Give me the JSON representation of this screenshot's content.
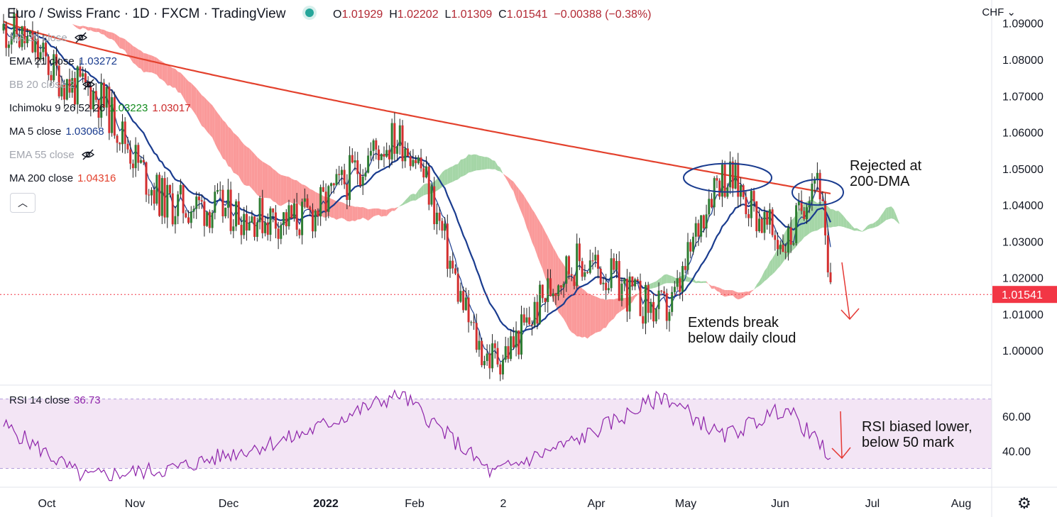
{
  "header": {
    "symbol": "Euro / Swiss Franc",
    "interval": "1D",
    "source": "FXCM",
    "platform": "TradingView",
    "open_label": "O",
    "open": "1.01929",
    "high_label": "H",
    "high": "1.02202",
    "low_label": "L",
    "low": "1.01309",
    "close_label": "C",
    "close": "1.01541",
    "change": "−0.00388 (−0.38%)",
    "currency": "CHF"
  },
  "indicators": [
    {
      "label": "MA 20 close",
      "values": [],
      "hidden": true
    },
    {
      "label": "EMA 21 close",
      "values": [
        "1.03272"
      ],
      "colors": [
        "#1a3c8f"
      ],
      "hidden": false
    },
    {
      "label": "BB 20 close 2",
      "values": [],
      "hidden": true
    },
    {
      "label": "Ichimoku 9 26 52 26",
      "values": [
        "1.03223",
        "1.03017"
      ],
      "colors": [
        "#138c1e",
        "#cc2b2b"
      ],
      "hidden": false
    },
    {
      "label": "MA 5 close",
      "values": [
        "1.03068"
      ],
      "colors": [
        "#1a3c8f"
      ],
      "hidden": false
    },
    {
      "label": "EMA 55 close",
      "values": [],
      "hidden": true
    },
    {
      "label": "MA 200 close",
      "values": [
        "1.04316"
      ],
      "colors": [
        "#e3412d"
      ],
      "hidden": false
    }
  ],
  "rsi_legend": {
    "label": "RSI 14 close",
    "value": "36.73"
  },
  "annotations": [
    {
      "text": "Rejected at\n200-DMA"
    },
    {
      "text": "Extends break\nbelow daily cloud"
    },
    {
      "text": "RSI biased lower,\nbelow 50 mark"
    }
  ],
  "colors": {
    "up": "#26a69a",
    "up_candle": "#2e7d32",
    "down": "#d32f2f",
    "ma200": "#e3412d",
    "ema21": "#1a3c8f",
    "ma5": "#1a3c8f",
    "cloud_bear": "#fa9a9a",
    "cloud_bull": "#a5d6a7",
    "rsi_line": "#8e24aa",
    "rsi_band": "#f3e5f5",
    "price_tag": "#f23645",
    "ellipse": "#1a3c8f",
    "arrow": "#e53935"
  },
  "chart_data": [
    {
      "type": "candlestick",
      "title": "Euro / Swiss Franc · 1D · FXCM",
      "y_axis_ticks": [
        "1.00000",
        "1.01000",
        "1.02000",
        "1.03000",
        "1.04000",
        "1.05000",
        "1.06000",
        "1.07000",
        "1.08000",
        "1.09000"
      ],
      "x_axis_ticks": [
        "Oct",
        "Nov",
        "Dec",
        "2022",
        "Feb",
        "2",
        "Apr",
        "May",
        "Jun",
        "Jul",
        "Aug"
      ],
      "ylim": [
        0.994,
        1.0915
      ],
      "last_price": "1.01541",
      "key_points": [
        {
          "x": "Oct",
          "y": 1.088
        },
        {
          "x": "Nov",
          "y": 1.072
        },
        {
          "x": "Dec",
          "y": 1.04
        },
        {
          "x": "2022",
          "y": 1.036
        },
        {
          "x": "Feb",
          "y": 1.058
        },
        {
          "x": "Mar",
          "y": 0.998
        },
        {
          "x": "Apr",
          "y": 1.024
        },
        {
          "x": "Apr (mid)",
          "y": 1.011
        },
        {
          "x": "May",
          "y": 1.048
        },
        {
          "x": "Jun",
          "y": 1.03
        },
        {
          "x": "Jun (mid)",
          "y": 1.049
        },
        {
          "x": "Jun (late)",
          "y": 1.0154
        }
      ],
      "series": [
        {
          "name": "MA 200 close",
          "last": 1.04316
        },
        {
          "name": "EMA 21 close",
          "last": 1.03272
        },
        {
          "name": "MA 5 close",
          "last": 1.03068
        },
        {
          "name": "Ichimoku 9 26 52 26",
          "last": [
            1.03223,
            1.03017
          ]
        }
      ],
      "grid": false
    },
    {
      "type": "line",
      "title": "RSI 14 close",
      "y_axis_ticks": [
        "40.00",
        "60.00"
      ],
      "ylim": [
        22,
        76
      ],
      "band": [
        30,
        70
      ],
      "last": 36.73,
      "key_points": [
        {
          "x": "Oct",
          "y": 55
        },
        {
          "x": "Nov",
          "y": 25
        },
        {
          "x": "Dec",
          "y": 30
        },
        {
          "x": "2022",
          "y": 48
        },
        {
          "x": "Feb",
          "y": 73
        },
        {
          "x": "Mar",
          "y": 27
        },
        {
          "x": "Apr",
          "y": 47
        },
        {
          "x": "May",
          "y": 72
        },
        {
          "x": "Jun",
          "y": 48
        },
        {
          "x": "Jun (mid)",
          "y": 65
        },
        {
          "x": "Jun (late)",
          "y": 36.73
        }
      ]
    }
  ]
}
